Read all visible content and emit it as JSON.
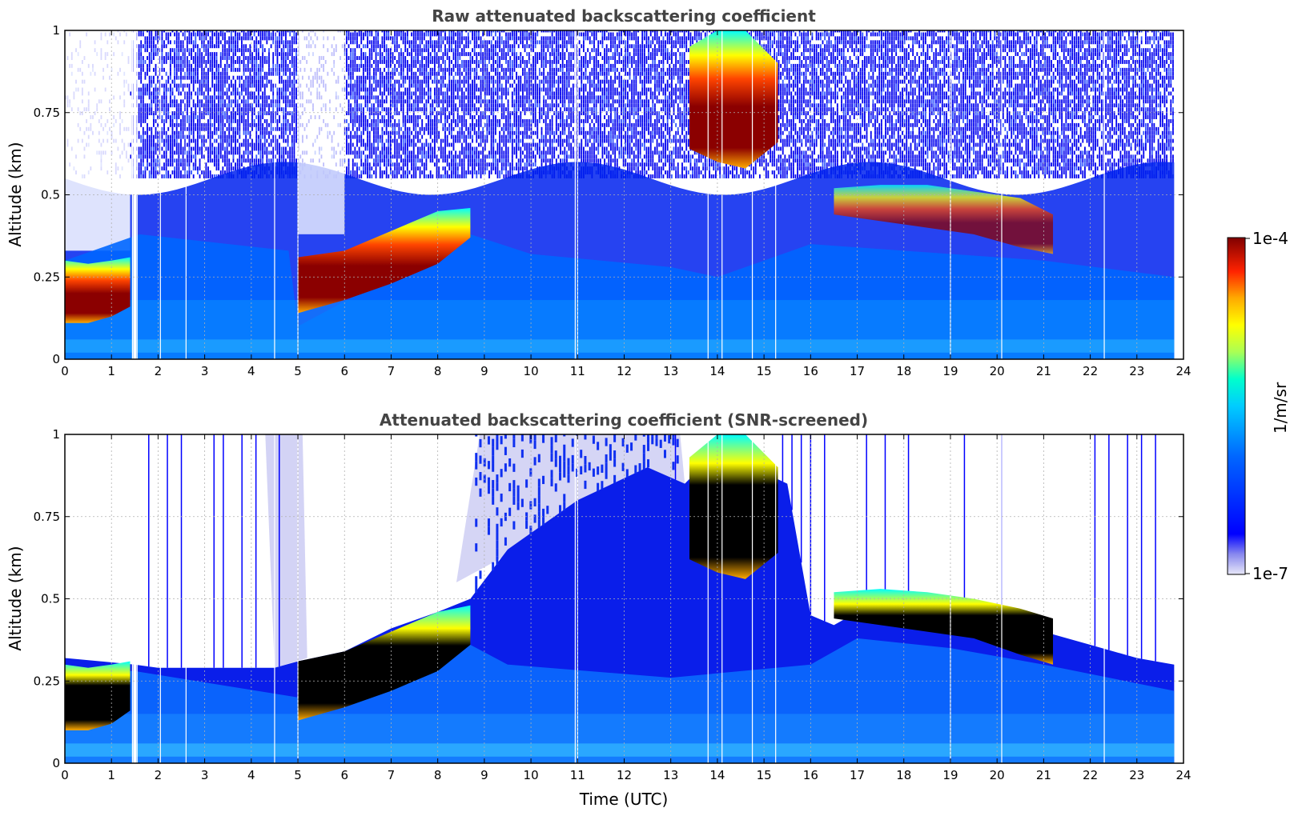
{
  "chart_data": [
    {
      "type": "heatmap",
      "title": "Raw attenuated backscattering coefficient",
      "xlabel": "",
      "ylabel": "Altitude (km)",
      "xlim": [
        0,
        24
      ],
      "ylim": [
        0,
        1
      ],
      "xticks": [
        "0",
        "1",
        "2",
        "3",
        "4",
        "5",
        "6",
        "7",
        "8",
        "9",
        "10",
        "11",
        "12",
        "13",
        "14",
        "15",
        "16",
        "17",
        "18",
        "19",
        "20",
        "21",
        "22",
        "23",
        "24"
      ],
      "yticks": [
        "0",
        "0.25",
        "0.5",
        "0.75",
        "1"
      ],
      "grid": true,
      "layers": [
        {
          "x": [
            0,
            0.5,
            1.0,
            1.4
          ],
          "top": [
            0.3,
            0.29,
            0.3,
            0.31
          ],
          "base": [
            0.11,
            0.11,
            0.13,
            0.16
          ],
          "level": "high"
        },
        {
          "x": [
            5.0,
            6.0,
            7.0,
            8.0,
            8.7
          ],
          "top": [
            0.31,
            0.33,
            0.39,
            0.45,
            0.46
          ],
          "base": [
            0.14,
            0.18,
            0.23,
            0.29,
            0.37
          ],
          "level": "high"
        },
        {
          "x": [
            13.4,
            14.0,
            14.6,
            15.3
          ],
          "top": [
            0.95,
            1.0,
            1.0,
            0.9
          ],
          "base": [
            0.64,
            0.6,
            0.58,
            0.66
          ],
          "level": "high"
        },
        {
          "x": [
            16.5,
            17.5,
            18.5,
            19.5,
            20.5,
            21.2
          ],
          "top": [
            0.52,
            0.53,
            0.53,
            0.51,
            0.49,
            0.44
          ],
          "base": [
            0.44,
            0.42,
            0.4,
            0.38,
            0.34,
            0.32
          ],
          "level": "medium"
        }
      ]
    },
    {
      "type": "heatmap",
      "title": "Attenuated backscattering coefficient (SNR-screened)",
      "xlabel": "Time (UTC)",
      "ylabel": "Altitude (km)",
      "xlim": [
        0,
        24
      ],
      "ylim": [
        0,
        1
      ],
      "xticks": [
        "0",
        "1",
        "2",
        "3",
        "4",
        "5",
        "6",
        "7",
        "8",
        "9",
        "10",
        "11",
        "12",
        "13",
        "14",
        "15",
        "16",
        "17",
        "18",
        "19",
        "20",
        "21",
        "22",
        "23",
        "24"
      ],
      "yticks": [
        "0",
        "0.25",
        "0.5",
        "0.75",
        "1"
      ],
      "grid": true,
      "signal_top": [
        [
          0,
          0.32
        ],
        [
          1.5,
          0.3
        ],
        [
          2,
          0.29
        ],
        [
          4.5,
          0.29
        ],
        [
          5,
          0.31
        ],
        [
          6,
          0.34
        ],
        [
          7,
          0.41
        ],
        [
          8,
          0.46
        ],
        [
          8.7,
          0.5
        ],
        [
          9.5,
          0.65
        ],
        [
          11,
          0.8
        ],
        [
          12.5,
          0.9
        ],
        [
          13.3,
          0.85
        ],
        [
          14,
          0.95
        ],
        [
          15.5,
          0.85
        ],
        [
          16,
          0.45
        ],
        [
          16.5,
          0.42
        ],
        [
          17,
          0.46
        ],
        [
          19,
          0.47
        ],
        [
          20,
          0.44
        ],
        [
          21,
          0.4
        ],
        [
          22,
          0.36
        ],
        [
          23,
          0.32
        ],
        [
          23.8,
          0.3
        ]
      ],
      "layers": [
        {
          "x": [
            0,
            0.5,
            1.0,
            1.4
          ],
          "top": [
            0.3,
            0.29,
            0.3,
            0.31
          ],
          "base": [
            0.1,
            0.1,
            0.12,
            0.16
          ],
          "level": "saturated"
        },
        {
          "x": [
            5.0,
            6.0,
            7.0,
            8.0,
            8.7
          ],
          "top": [
            0.31,
            0.34,
            0.4,
            0.46,
            0.48
          ],
          "base": [
            0.13,
            0.17,
            0.22,
            0.28,
            0.36
          ],
          "level": "saturated"
        },
        {
          "x": [
            13.4,
            14.0,
            14.6,
            15.3
          ],
          "top": [
            0.93,
            1.0,
            1.0,
            0.9
          ],
          "base": [
            0.62,
            0.58,
            0.56,
            0.64
          ],
          "level": "saturated"
        },
        {
          "x": [
            16.5,
            17.5,
            18.5,
            19.5,
            20.5,
            21.2
          ],
          "top": [
            0.52,
            0.53,
            0.52,
            0.5,
            0.47,
            0.44
          ],
          "base": [
            0.44,
            0.42,
            0.4,
            0.38,
            0.33,
            0.3
          ],
          "level": "saturated"
        }
      ]
    }
  ],
  "colorbar": {
    "label": "1/m/sr",
    "max_label": "1e-4",
    "min_label": "1e-7",
    "colormap": "jet",
    "colors": [
      "#e8e8f8",
      "#0000ff",
      "#00aaff",
      "#00ffff",
      "#aaff55",
      "#ffff00",
      "#ffaa00",
      "#ff2200",
      "#800000"
    ],
    "saturation_color": "#000000"
  }
}
